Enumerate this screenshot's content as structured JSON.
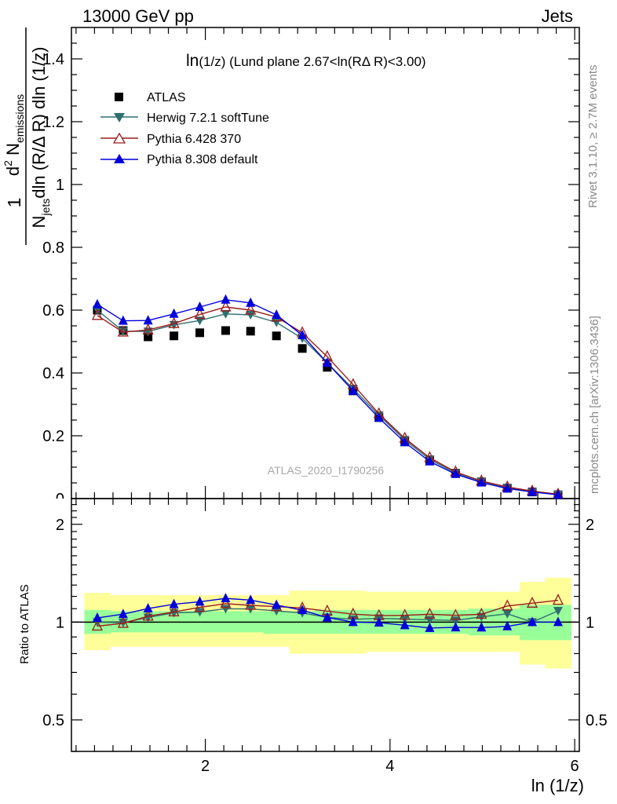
{
  "header": {
    "left": "13000 GeV pp",
    "right": "Jets"
  },
  "side_labels": {
    "rivet": "Rivet 3.1.10, ≥ 2.7M events",
    "mcplots": "mcplots.cern.ch [arXiv:1306.3436]"
  },
  "watermark": "ATLAS_2020_I1790256",
  "colors": {
    "atlas": "#000000",
    "herwig": "#2f6f6f",
    "pythia6": "#9b1c1c",
    "pythia8": "#0000dd",
    "band_inner": "#99ff99",
    "band_outer": "#ffff99"
  },
  "chart_data": [
    {
      "type": "line",
      "panel": "main",
      "title": "ln(1/z) (Lund plane 2.67<ln(RΔ R)<3.00)",
      "title_parts": {
        "a": "ln",
        "b": "(1/z)",
        "c": " (Lund plane 2.67<ln(R",
        "d": "Δ",
        "e": " R)<3.00)"
      },
      "ylabel": {
        "numer_d": "d",
        "numer_sup": "2",
        "numer_N": "N",
        "numer_sub": "emissions",
        "denom_N": "N",
        "denom_sub": "jets",
        "denom_rest": "dln (R/Δ R) dln (1/z)",
        "one": "1"
      },
      "ylim": [
        0,
        1.5
      ],
      "xlim": [
        0.55,
        6.05
      ],
      "yticks": [
        0.2,
        0.4,
        0.6,
        0.8,
        1,
        1.2,
        1.4
      ],
      "yticks_labels": [
        "0.2",
        "0.4",
        "0.6",
        "0.8",
        "1",
        "1.2",
        "1.4"
      ],
      "legend_position": "top-left",
      "x": [
        0.83,
        1.11,
        1.38,
        1.66,
        1.94,
        2.22,
        2.49,
        2.77,
        3.05,
        3.32,
        3.6,
        3.88,
        4.16,
        4.43,
        4.71,
        4.99,
        5.27,
        5.54,
        5.82
      ],
      "series": [
        {
          "name": "ATLAS",
          "marker": "square",
          "values": [
            0.6,
            0.535,
            0.515,
            0.518,
            0.528,
            0.535,
            0.533,
            0.518,
            0.478,
            0.418,
            0.343,
            0.258,
            0.183,
            0.123,
            0.081,
            0.053,
            0.033,
            0.021,
            0.012
          ]
        },
        {
          "name": "Herwig 7.2.1 softTune",
          "marker": "triangle-down",
          "values": [
            0.6,
            0.533,
            0.532,
            0.553,
            0.567,
            0.588,
            0.585,
            0.561,
            0.51,
            0.432,
            0.35,
            0.265,
            0.187,
            0.125,
            0.082,
            0.055,
            0.035,
            0.021,
            0.013
          ]
        },
        {
          "name": "Pythia 6.428 370",
          "marker": "triangle-up-open",
          "values": [
            0.583,
            0.53,
            0.537,
            0.557,
            0.586,
            0.61,
            0.6,
            0.578,
            0.528,
            0.452,
            0.363,
            0.27,
            0.192,
            0.13,
            0.085,
            0.056,
            0.037,
            0.024,
            0.014
          ]
        },
        {
          "name": "Pythia 8.308 default",
          "marker": "triangle-up",
          "values": [
            0.618,
            0.566,
            0.567,
            0.588,
            0.61,
            0.633,
            0.623,
            0.585,
            0.52,
            0.432,
            0.343,
            0.257,
            0.179,
            0.118,
            0.078,
            0.051,
            0.032,
            0.021,
            0.012
          ]
        }
      ]
    },
    {
      "type": "line",
      "panel": "ratio",
      "ylabel": "Ratio to ATLAS",
      "xlabel": "ln (1/z)",
      "ylim": [
        0.4,
        2.4
      ],
      "ylog": true,
      "xlim": [
        0.55,
        6.05
      ],
      "xticks": [
        2,
        4,
        6
      ],
      "xticks_labels": [
        "2",
        "4",
        "6"
      ],
      "yticks": [
        0.5,
        1,
        2
      ],
      "yticks_labels": [
        "0.5",
        "1",
        "2"
      ],
      "x": [
        0.83,
        1.11,
        1.38,
        1.66,
        1.94,
        2.22,
        2.49,
        2.77,
        3.05,
        3.32,
        3.6,
        3.88,
        4.16,
        4.43,
        4.71,
        4.99,
        5.27,
        5.54,
        5.82
      ],
      "band_inner": {
        "low": [
          0.92,
          0.93,
          0.93,
          0.93,
          0.93,
          0.93,
          0.93,
          0.92,
          0.92,
          0.92,
          0.92,
          0.92,
          0.92,
          0.92,
          0.92,
          0.91,
          0.91,
          0.88,
          0.88
        ],
        "high": [
          1.09,
          1.08,
          1.08,
          1.08,
          1.08,
          1.08,
          1.08,
          1.08,
          1.08,
          1.09,
          1.09,
          1.09,
          1.09,
          1.09,
          1.09,
          1.1,
          1.1,
          1.13,
          1.13
        ]
      },
      "band_outer": {
        "low": [
          0.82,
          0.84,
          0.84,
          0.84,
          0.84,
          0.84,
          0.84,
          0.84,
          0.8,
          0.8,
          0.8,
          0.81,
          0.81,
          0.81,
          0.81,
          0.81,
          0.81,
          0.74,
          0.72
        ],
        "high": [
          1.23,
          1.21,
          1.21,
          1.21,
          1.21,
          1.21,
          1.21,
          1.21,
          1.25,
          1.25,
          1.25,
          1.24,
          1.24,
          1.24,
          1.24,
          1.24,
          1.24,
          1.33,
          1.37
        ]
      },
      "series": [
        {
          "name": "Herwig 7.2.1 softTune",
          "values": [
            1.0,
            0.996,
            1.033,
            1.068,
            1.074,
            1.099,
            1.098,
            1.083,
            1.067,
            1.034,
            1.02,
            1.027,
            1.022,
            1.016,
            1.012,
            1.038,
            1.061,
            1.0,
            1.083
          ]
        },
        {
          "name": "Pythia 6.428 370",
          "values": [
            0.972,
            0.991,
            1.043,
            1.075,
            1.11,
            1.14,
            1.126,
            1.116,
            1.105,
            1.081,
            1.058,
            1.047,
            1.049,
            1.057,
            1.049,
            1.057,
            1.121,
            1.143,
            1.167
          ]
        },
        {
          "name": "Pythia 8.308 default",
          "values": [
            1.03,
            1.058,
            1.101,
            1.135,
            1.155,
            1.183,
            1.169,
            1.129,
            1.088,
            1.033,
            1.0,
            0.996,
            0.978,
            0.959,
            0.963,
            0.962,
            0.97,
            1.0,
            1.0
          ]
        }
      ]
    }
  ]
}
